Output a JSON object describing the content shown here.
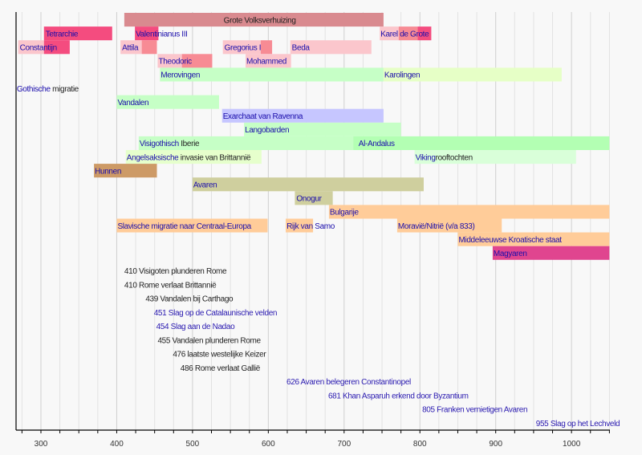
{
  "chart_data": {
    "type": "timeline",
    "title": "",
    "xlabel": "",
    "xlim": [
      267,
      1050
    ],
    "x_ticks": [
      300,
      400,
      500,
      600,
      700,
      800,
      900,
      1000
    ],
    "minor_tick_step": 25,
    "grid": true,
    "colors": {
      "link": "#1a0dab",
      "text": "#222222",
      "event_link": "#2a1ab0"
    },
    "rows": [
      {
        "segments": [
          {
            "start": 410,
            "end": 752,
            "color": "#d98a8f",
            "label": "Grote Volksverhuizing",
            "label_color": "#222222",
            "label_at": 540
          }
        ]
      },
      {
        "segments": [
          {
            "start": 304,
            "end": 394,
            "color": "#f44c7f",
            "label": "Tetrarchie",
            "label_color": "#1a0dab",
            "label_at": 305
          },
          {
            "start": 424,
            "end": 455,
            "color": "#f44c7f",
            "label": "Valentinianus III",
            "label_color": "#1a0dab",
            "label_at": 424
          },
          {
            "start": 747,
            "end": 772,
            "color": "#fbc6cc",
            "label": "Karel de Grote",
            "label_color": "#1a0dab",
            "label_at": 747
          },
          {
            "start": 772,
            "end": 797,
            "color": "#f78b94",
            "label": "",
            "label_color": "",
            "label_at": 0
          },
          {
            "start": 797,
            "end": 815,
            "color": "#f44c7f",
            "label": "",
            "label_color": "",
            "label_at": 0
          }
        ]
      },
      {
        "segments": [
          {
            "start": 270,
            "end": 304,
            "color": "#fbc6cc",
            "label": "Constantijn",
            "label_color": "#1a0dab",
            "label_at": 271
          },
          {
            "start": 304,
            "end": 338,
            "color": "#f44c7f",
            "label": "",
            "label_color": "",
            "label_at": 0
          },
          {
            "start": 405,
            "end": 433,
            "color": "#fbc6cc",
            "label": "Attila",
            "label_color": "#1a0dab",
            "label_at": 406
          },
          {
            "start": 433,
            "end": 453,
            "color": "#f78b94",
            "label": "",
            "label_color": "",
            "label_at": 0
          },
          {
            "start": 540,
            "end": 590,
            "color": "#fbc6cc",
            "label": "Gregorius I",
            "label_color": "#1a0dab",
            "label_at": 541
          },
          {
            "start": 590,
            "end": 605,
            "color": "#f78b94",
            "label": "",
            "label_color": "",
            "label_at": 0
          },
          {
            "start": 629,
            "end": 736,
            "color": "#fbc6cc",
            "label": "Beda",
            "label_color": "#1a0dab",
            "label_at": 630
          }
        ]
      },
      {
        "segments": [
          {
            "start": 454,
            "end": 486,
            "color": "#fbc6cc",
            "label": "Theodoric",
            "label_color": "#1a0dab",
            "label_at": 454
          },
          {
            "start": 486,
            "end": 526,
            "color": "#f78b94",
            "label": "",
            "label_color": "",
            "label_at": 0
          },
          {
            "start": 570,
            "end": 630,
            "color": "#fbc6cc",
            "label": "Mohammed",
            "label_color": "#1a0dab",
            "label_at": 570
          }
        ]
      },
      {
        "segments": [
          {
            "start": 457,
            "end": 752,
            "color": "#c6ffc6",
            "label": "Merovingen",
            "label_color": "#1a0dab",
            "label_at": 457
          },
          {
            "start": 752,
            "end": 987,
            "color": "#e6ffc6",
            "label": "Karolingen",
            "label_color": "#1a0dab",
            "label_at": 752
          }
        ]
      },
      {
        "segments": [
          {
            "start": 267,
            "end": 267,
            "color": "#c6ffc6",
            "label": "Gothische migratie",
            "label_color": "#1a0dab",
            "label_at": 267,
            "label_plain_suffix": " migratie",
            "label_link_part": "Gothische"
          }
        ]
      },
      {
        "segments": [
          {
            "start": 400,
            "end": 535,
            "color": "#c6ffc6",
            "label": "Vandalen",
            "label_color": "#1a0dab",
            "label_at": 400
          }
        ]
      },
      {
        "segments": [
          {
            "start": 539,
            "end": 752,
            "color": "#c6c6ff",
            "label": "Exarchaat van Ravenna",
            "label_color": "#1a0dab",
            "label_at": 539
          }
        ]
      },
      {
        "segments": [
          {
            "start": 568,
            "end": 775,
            "color": "#c6ffc6",
            "label": "Langobarden",
            "label_color": "#1a0dab",
            "label_at": 568
          }
        ]
      },
      {
        "segments": [
          {
            "start": 429,
            "end": 712,
            "color": "#c6ffc6",
            "label": "Visigothisch Iberie",
            "label_color": "#1a0dab",
            "label_at": 429,
            "label_link_part": "Visigothisch",
            "label_plain_suffix": " Iberie"
          },
          {
            "start": 712,
            "end": 1050,
            "color": "#b3ffb3",
            "label": "Al-Andalus",
            "label_color": "#1a0dab",
            "label_at": 718
          }
        ]
      },
      {
        "segments": [
          {
            "start": 412,
            "end": 591,
            "color": "#e6ffcc",
            "label": "Angelsaksische invasie van Brittannië",
            "label_color": "#1a0dab",
            "label_at": 412,
            "label_link_part": "Angelsaksische",
            "label_plain_suffix": " invasie van Brittannië"
          },
          {
            "start": 793,
            "end": 1006,
            "color": "#d9ffd9",
            "label": "Vikingrooftochten",
            "label_color": "#1a0dab",
            "label_at": 793,
            "label_link_part": "Viking",
            "label_plain_suffix": "rooftochten"
          }
        ]
      },
      {
        "segments": [
          {
            "start": 370,
            "end": 453,
            "color": "#cd9a66",
            "label": "Hunnen",
            "label_color": "#1a0dab",
            "label_at": 370
          }
        ]
      },
      {
        "segments": [
          {
            "start": 500,
            "end": 805,
            "color": "#cfcf9e",
            "label": "Avaren",
            "label_color": "#1a0dab",
            "label_at": 500
          }
        ]
      },
      {
        "segments": [
          {
            "start": 635,
            "end": 685,
            "color": "#cfcf9e",
            "label": "Onogur",
            "label_color": "#1a0dab",
            "label_at": 636
          }
        ]
      },
      {
        "segments": [
          {
            "start": 680,
            "end": 1050,
            "color": "#ffcc99",
            "label": "Bulgarije",
            "label_color": "#1a0dab",
            "label_at": 680
          }
        ]
      },
      {
        "segments": [
          {
            "start": 400,
            "end": 599,
            "color": "#ffcc99",
            "label": "Slavische migratie naar Centraal-Europa",
            "label_color": "#1a0dab",
            "label_at": 400
          },
          {
            "start": 623,
            "end": 659,
            "color": "#ffcc99",
            "label": "Rijk van Samo",
            "label_color": "#1a0dab",
            "label_at": 623
          },
          {
            "start": 770,
            "end": 908,
            "color": "#ffcc99",
            "label": "Moravië/Nitrië (v/a 833)",
            "label_color": "#1a0dab",
            "label_at": 770
          }
        ]
      },
      {
        "segments": [
          {
            "start": 850,
            "end": 1050,
            "color": "#ffcc99",
            "label": "Middeleeuwse Kroatische staat",
            "label_color": "#1a0dab",
            "label_at": 850
          }
        ]
      },
      {
        "segments": [
          {
            "start": 896,
            "end": 1050,
            "color": "#e0458f",
            "label": "Magyaren",
            "label_color": "#1a0dab",
            "label_at": 896
          }
        ]
      }
    ],
    "events": [
      {
        "year": 410,
        "text": "410 Visigoten plunderen Rome",
        "link": false,
        "label_at": 410
      },
      {
        "year": 410,
        "text": "410 Rome verlaat Brittannië",
        "link": false,
        "label_at": 410
      },
      {
        "year": 439,
        "text": "439 Vandalen bij Carthago",
        "link": false,
        "label_at": 438
      },
      {
        "year": 451,
        "text": "451 Slag op de Catalaunische velden",
        "link": true,
        "label_at": 449
      },
      {
        "year": 454,
        "text": "454 Slag aan de Nadao",
        "link": true,
        "label_at": 452
      },
      {
        "year": 455,
        "text": "455 Vandalen plunderen Rome",
        "link": false,
        "label_at": 454
      },
      {
        "year": 476,
        "text": "476 laatste westelijke Keizer",
        "link": false,
        "label_at": 474
      },
      {
        "year": 486,
        "text": "486 Rome verlaat Gallië",
        "link": false,
        "label_at": 484
      },
      {
        "year": 626,
        "text": "626 Avaren belegeren Constantinopel",
        "link": true,
        "label_at": 624
      },
      {
        "year": 681,
        "text": "681 Khan Asparuh erkend door Byzantium",
        "link": true,
        "label_at": 679
      },
      {
        "year": 805,
        "text": "805 Franken vernietigen Avaren",
        "link": true,
        "label_at": 803
      },
      {
        "year": 955,
        "text": "955 Slag op het Lechveld",
        "link": true,
        "label_at": 953
      }
    ]
  }
}
